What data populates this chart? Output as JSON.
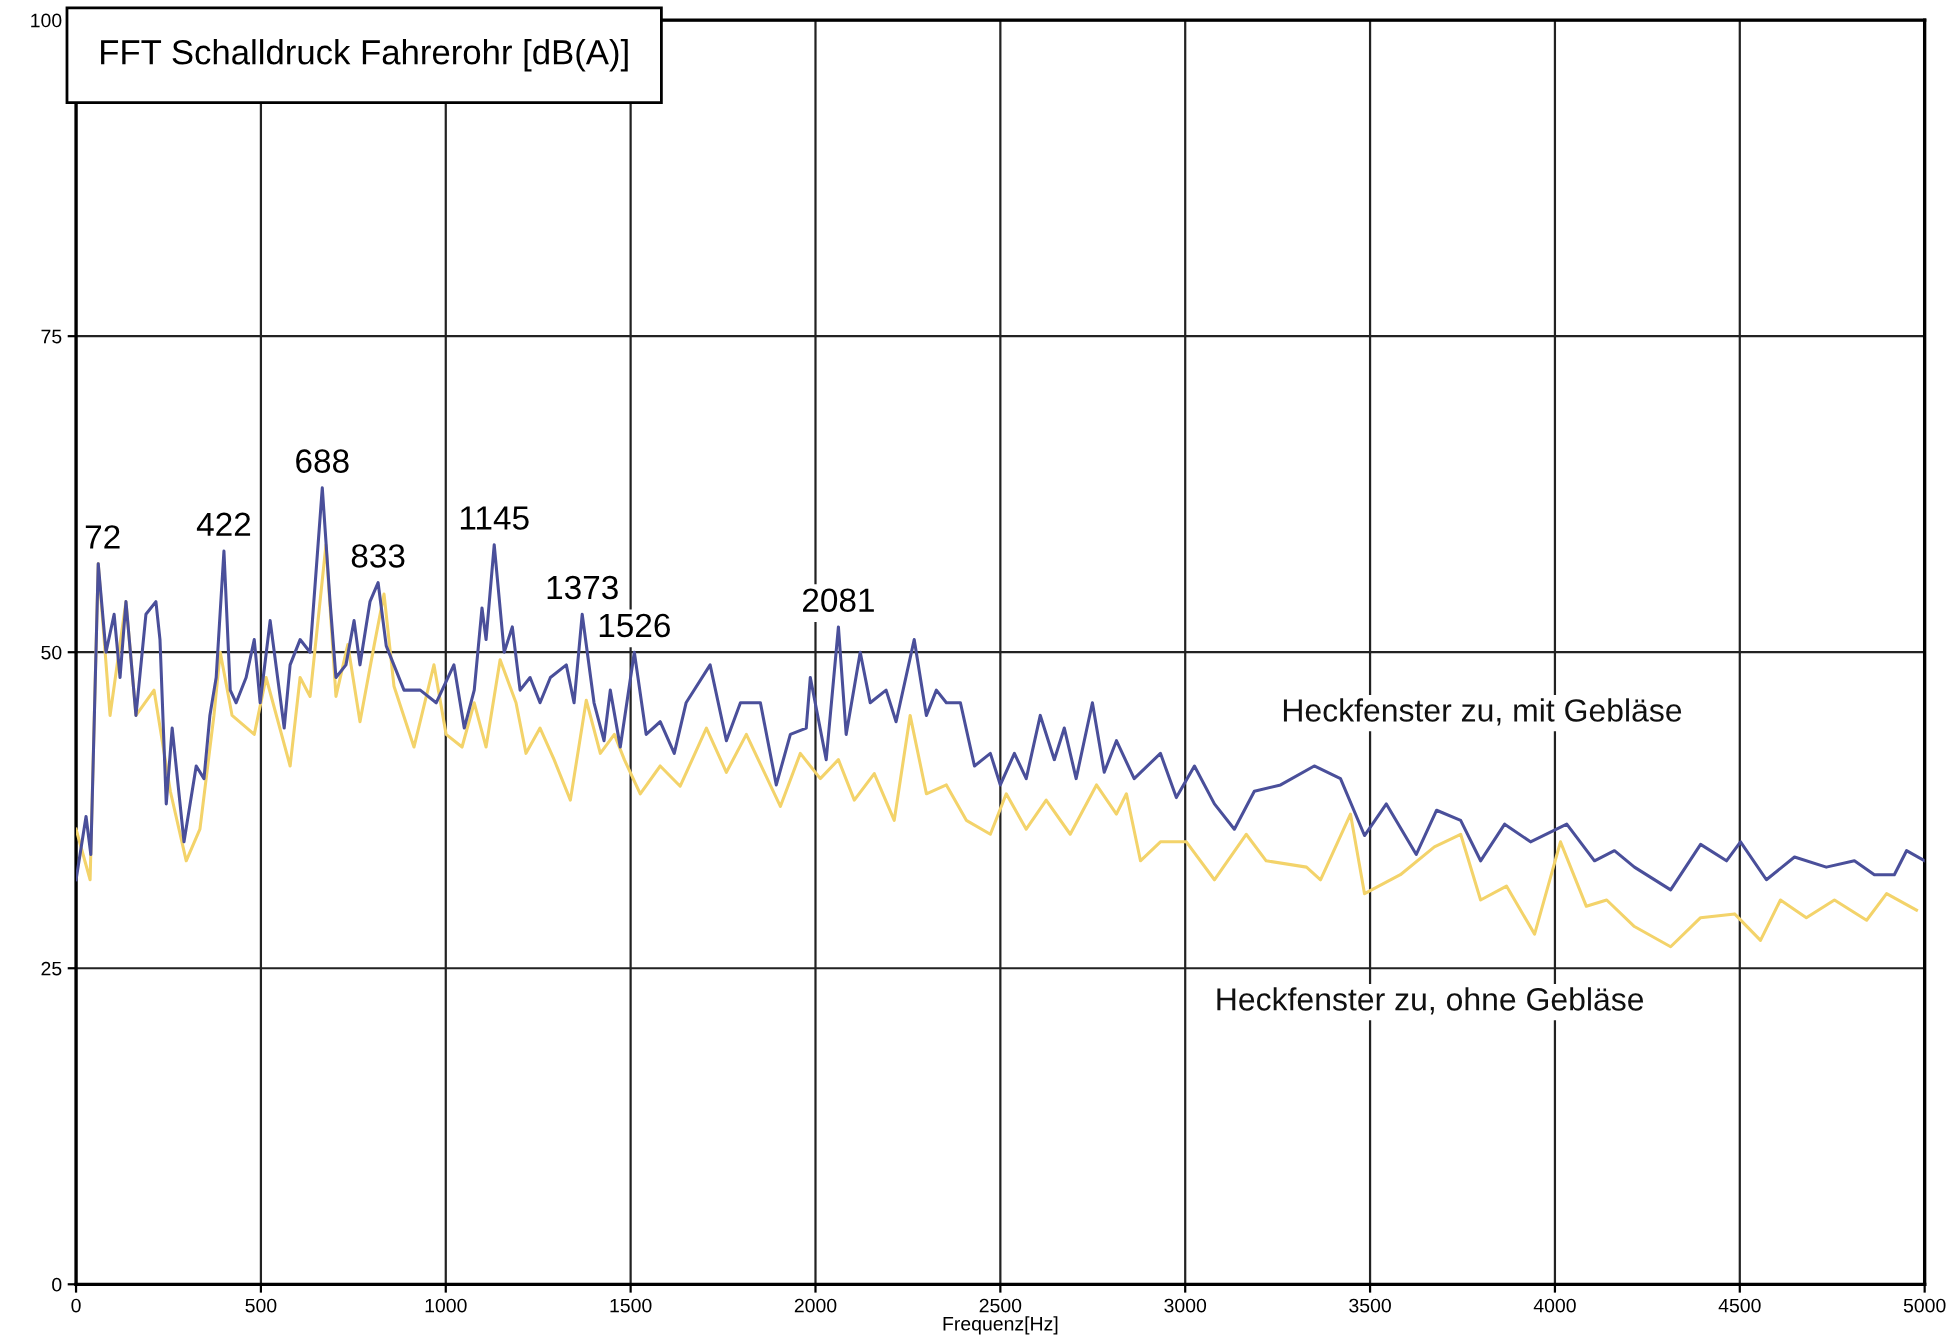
{
  "chart_data": {
    "type": "line",
    "title": "FFT Schalldruck Fahrerohr [dB(A)]",
    "xlabel": "Frequenz[Hz]",
    "xlim": [
      0,
      5000
    ],
    "xticks": [
      0,
      500,
      1000,
      1500,
      2000,
      2500,
      3000,
      3500,
      4000,
      4500,
      5000
    ],
    "ylim": [
      0,
      100
    ],
    "yticks": [
      0,
      25,
      50,
      75,
      100
    ],
    "grid": true,
    "legend": false,
    "series": [
      {
        "name": "Heckfenster zu, mit Gebläse",
        "color": "#4a4f9a",
        "x": [
          0,
          27,
          40,
          60,
          81,
          103,
          119,
          135,
          162,
          189,
          216,
          227,
          244,
          260,
          292,
          325,
          346,
          362,
          379,
          400,
          417,
          433,
          460,
          482,
          498,
          525,
          563,
          579,
          606,
          633,
          666,
          687,
          703,
          730,
          752,
          768,
          795,
          817,
          839,
          887,
          931,
          974,
          1022,
          1050,
          1077,
          1098,
          1109,
          1131,
          1158,
          1180,
          1201,
          1228,
          1255,
          1283,
          1326,
          1347,
          1369,
          1401,
          1428,
          1445,
          1472,
          1510,
          1542,
          1580,
          1618,
          1650,
          1715,
          1759,
          1797,
          1851,
          1894,
          1932,
          1975,
          1986,
          2029,
          2062,
          2083,
          2121,
          2148,
          2191,
          2218,
          2267,
          2300,
          2327,
          2354,
          2392,
          2430,
          2473,
          2500,
          2538,
          2570,
          2608,
          2646,
          2673,
          2705,
          2749,
          2781,
          2814,
          2862,
          2933,
          2976,
          3025,
          3079,
          3133,
          3187,
          3258,
          3349,
          3420,
          3485,
          3544,
          3625,
          3680,
          3745,
          3799,
          3864,
          3934,
          4032,
          4107,
          4161,
          4215,
          4313,
          4394,
          4464,
          4502,
          4572,
          4648,
          4734,
          4810,
          4864,
          4918,
          4951,
          5000
        ],
        "values": [
          32,
          37,
          34,
          57,
          50,
          53,
          48,
          54,
          45,
          53,
          54,
          51,
          38,
          44,
          35,
          41,
          40,
          45,
          48,
          58,
          47,
          46,
          48,
          51,
          46,
          52.5,
          44,
          49,
          51,
          50,
          63,
          54,
          48,
          49,
          52.5,
          49,
          54,
          55.5,
          50.5,
          47,
          47,
          46,
          49,
          44,
          47,
          53.5,
          51,
          58.5,
          50,
          52,
          47,
          48,
          46,
          48,
          49,
          46,
          53,
          46,
          43,
          47,
          42.5,
          50,
          43.5,
          44.5,
          42,
          46,
          49,
          43,
          46,
          46,
          39.5,
          43.5,
          44,
          48,
          41.5,
          52,
          43.5,
          50,
          46,
          47,
          44.5,
          51,
          45,
          47,
          46,
          46,
          41,
          42,
          39.5,
          42,
          40,
          45,
          41.5,
          44,
          40,
          46,
          40.5,
          43,
          40,
          42,
          38.5,
          41,
          38,
          36,
          39,
          39.5,
          41,
          40,
          35.5,
          38,
          34,
          37.5,
          36.7,
          33.5,
          36.4,
          35,
          36.4,
          33.5,
          34.3,
          33,
          31.2,
          34.8,
          33.5,
          35,
          32,
          33.8,
          33,
          33.5,
          32.4,
          32.4,
          34.3,
          33.5
        ]
      },
      {
        "name": "Heckfenster zu, ohne Gebläse",
        "color": "#f3d36a",
        "x": [
          0,
          38,
          60,
          92,
          135,
          162,
          211,
          255,
          298,
          335,
          373,
          390,
          422,
          482,
          514,
          579,
          606,
          633,
          676,
          703,
          735,
          768,
          806,
          833,
          860,
          914,
          968,
          1001,
          1044,
          1077,
          1109,
          1147,
          1190,
          1217,
          1255,
          1293,
          1337,
          1380,
          1418,
          1456,
          1483,
          1526,
          1580,
          1634,
          1705,
          1759,
          1813,
          1905,
          1959,
          2013,
          2062,
          2105,
          2159,
          2213,
          2256,
          2300,
          2354,
          2408,
          2473,
          2516,
          2570,
          2624,
          2689,
          2760,
          2814,
          2841,
          2879,
          2933,
          3003,
          3079,
          3165,
          3219,
          3328,
          3366,
          3447,
          3485,
          3582,
          3674,
          3745,
          3799,
          3869,
          3945,
          4015,
          4085,
          4140,
          4215,
          4313,
          4394,
          4486,
          4556,
          4610,
          4680,
          4756,
          4843,
          4897,
          4978
        ],
        "values": [
          36,
          32,
          57,
          45,
          54,
          45,
          47,
          39,
          33.5,
          36,
          45,
          50,
          45,
          43.5,
          48,
          41,
          48,
          46.5,
          58.5,
          46.5,
          50.6,
          44.5,
          50.5,
          54.6,
          47.3,
          42.5,
          49,
          43.5,
          42.5,
          46,
          42.5,
          49.4,
          46,
          42,
          44,
          41.5,
          38.3,
          46.2,
          42,
          43.5,
          41.5,
          38.8,
          41,
          39.4,
          44,
          40.5,
          43.5,
          37.8,
          42,
          40,
          41.5,
          38.3,
          40.4,
          36.7,
          45,
          38.8,
          39.5,
          36.7,
          35.6,
          38.8,
          36,
          38.3,
          35.6,
          39.5,
          37.2,
          38.8,
          33.5,
          35,
          35,
          32,
          35.6,
          33.5,
          33,
          32,
          37.2,
          30.9,
          32.4,
          34.6,
          35.6,
          30.4,
          31.5,
          27.7,
          35,
          29.9,
          30.4,
          28.3,
          26.7,
          29,
          29.3,
          27.2,
          30.4,
          29,
          30.4,
          28.8,
          30.9,
          29.6
        ]
      }
    ],
    "annotations": [
      {
        "text": "72",
        "x": 72,
        "y": 57
      },
      {
        "text": "422",
        "x": 400,
        "y": 58
      },
      {
        "text": "688",
        "x": 666,
        "y": 63
      },
      {
        "text": "833",
        "x": 817,
        "y": 55.5
      },
      {
        "text": "1145",
        "x": 1131,
        "y": 58.5
      },
      {
        "text": "1373",
        "x": 1369,
        "y": 53
      },
      {
        "text": "1526",
        "x": 1510,
        "y": 50
      },
      {
        "text": "2081",
        "x": 2062,
        "y": 52
      }
    ]
  }
}
